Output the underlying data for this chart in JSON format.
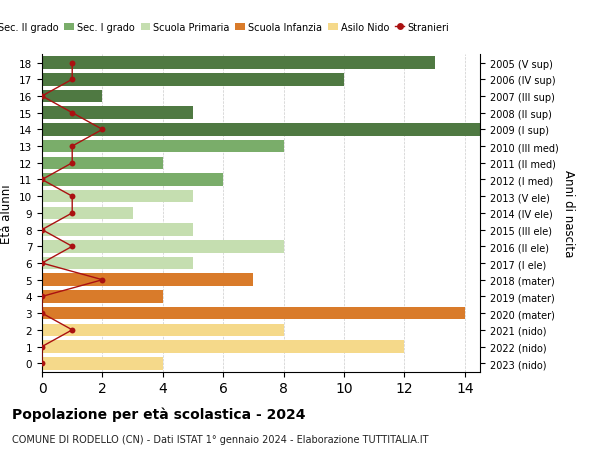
{
  "ages": [
    18,
    17,
    16,
    15,
    14,
    13,
    12,
    11,
    10,
    9,
    8,
    7,
    6,
    5,
    4,
    3,
    2,
    1,
    0
  ],
  "right_labels": [
    "2005 (V sup)",
    "2006 (IV sup)",
    "2007 (III sup)",
    "2008 (II sup)",
    "2009 (I sup)",
    "2010 (III med)",
    "2011 (II med)",
    "2012 (I med)",
    "2013 (V ele)",
    "2014 (IV ele)",
    "2015 (III ele)",
    "2016 (II ele)",
    "2017 (I ele)",
    "2018 (mater)",
    "2019 (mater)",
    "2020 (mater)",
    "2021 (nido)",
    "2022 (nido)",
    "2023 (nido)"
  ],
  "bar_values": [
    13,
    10,
    2,
    5,
    15,
    8,
    4,
    6,
    5,
    3,
    5,
    8,
    5,
    7,
    4,
    14,
    8,
    12,
    4
  ],
  "bar_colors": [
    "#4f7942",
    "#4f7942",
    "#4f7942",
    "#4f7942",
    "#4f7942",
    "#7aad6a",
    "#7aad6a",
    "#7aad6a",
    "#c5deb0",
    "#c5deb0",
    "#c5deb0",
    "#c5deb0",
    "#c5deb0",
    "#d97b2a",
    "#d97b2a",
    "#d97b2a",
    "#f5d98a",
    "#f5d98a",
    "#f5d98a"
  ],
  "stranieri_x": [
    1,
    1,
    0,
    1,
    2,
    1,
    1,
    0,
    1,
    1,
    0,
    1,
    0,
    2,
    0,
    0,
    1,
    0,
    0
  ],
  "stranieri_color": "#aa1111",
  "legend_labels": [
    "Sec. II grado",
    "Sec. I grado",
    "Scuola Primaria",
    "Scuola Infanzia",
    "Asilo Nido",
    "Stranieri"
  ],
  "legend_colors": [
    "#4f7942",
    "#7aad6a",
    "#c5deb0",
    "#d97b2a",
    "#f5d98a",
    "#aa1111"
  ],
  "ylabel": "Età alunni",
  "right_ylabel": "Anni di nascita",
  "title": "Popolazione per età scolastica - 2024",
  "subtitle": "COMUNE DI RODELLO (CN) - Dati ISTAT 1° gennaio 2024 - Elaborazione TUTTITALIA.IT",
  "xlim": [
    0,
    14.5
  ],
  "xticks": [
    0,
    2,
    4,
    6,
    8,
    10,
    12,
    14
  ],
  "background_color": "#ffffff",
  "grid_color": "#cccccc"
}
